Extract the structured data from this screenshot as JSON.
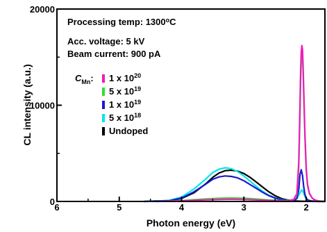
{
  "chart_data": {
    "type": "line",
    "xlabel": "Photon energy (eV)",
    "ylabel": "CL intensity (a.u.)",
    "xlim": [
      6,
      1.7
    ],
    "x_reversed": true,
    "ylim": [
      0,
      20000
    ],
    "x_ticks": [
      6,
      5,
      4,
      3,
      2
    ],
    "y_ticks": [
      0,
      10000,
      20000
    ],
    "grid": false,
    "legend_position": "top-left",
    "annotations": [
      "Processing temp: 1300°C",
      "Acc. voltage: 5 kV",
      "Beam current: 900 pA"
    ],
    "legend_title_main": "C",
    "legend_title_sub": "Mn",
    "legend_title_suffix": ":",
    "series": [
      {
        "name_main": "Undoped",
        "name_sup": "",
        "color": "#000000",
        "x": [
          4.6,
          4.2,
          4.0,
          3.8,
          3.6,
          3.5,
          3.4,
          3.3,
          3.2,
          3.1,
          3.0,
          2.9,
          2.8,
          2.7,
          2.6,
          2.5,
          2.4,
          2.3,
          2.2,
          2.1,
          2.05,
          2.0,
          1.95,
          1.9,
          1.8,
          1.7
        ],
        "y": [
          0,
          80,
          300,
          900,
          1900,
          2500,
          2950,
          3200,
          3250,
          3150,
          2900,
          2500,
          2000,
          1500,
          1000,
          600,
          300,
          150,
          60,
          30,
          20,
          15,
          10,
          5,
          0,
          0
        ]
      },
      {
        "name_main": "5 x 10",
        "name_sup": "18",
        "color": "#00e5f0",
        "x": [
          4.6,
          4.2,
          4.0,
          3.8,
          3.6,
          3.5,
          3.4,
          3.3,
          3.2,
          3.1,
          3.0,
          2.9,
          2.8,
          2.7,
          2.6,
          2.5,
          2.4,
          2.3,
          2.2,
          2.15,
          2.1,
          2.07,
          2.05,
          2.02,
          2.0,
          1.95,
          1.9,
          1.8,
          1.7
        ],
        "y": [
          0,
          100,
          450,
          1300,
          2400,
          3000,
          3350,
          3500,
          3400,
          3100,
          2650,
          2100,
          1550,
          1050,
          650,
          380,
          200,
          110,
          120,
          300,
          900,
          1200,
          1000,
          500,
          250,
          80,
          30,
          0,
          0
        ]
      },
      {
        "name_main": "1 x 10",
        "name_sup": "19",
        "color": "#1a1acc",
        "x": [
          4.6,
          4.2,
          4.0,
          3.8,
          3.6,
          3.5,
          3.4,
          3.3,
          3.2,
          3.1,
          3.0,
          2.9,
          2.8,
          2.7,
          2.6,
          2.5,
          2.4,
          2.3,
          2.2,
          2.15,
          2.12,
          2.1,
          2.08,
          2.06,
          2.04,
          2.02,
          2.0,
          1.98,
          1.95,
          1.9,
          1.8,
          1.7
        ],
        "y": [
          0,
          80,
          350,
          1000,
          1850,
          2300,
          2550,
          2650,
          2600,
          2450,
          2150,
          1750,
          1350,
          950,
          600,
          350,
          180,
          90,
          100,
          300,
          1200,
          2800,
          3300,
          2700,
          1500,
          700,
          350,
          180,
          100,
          40,
          10,
          0
        ]
      },
      {
        "name_main": "5 x 10",
        "name_sup": "19",
        "color": "#33dd33",
        "x": [
          4.4,
          4.0,
          3.8,
          3.6,
          3.4,
          3.2,
          3.0,
          2.8,
          2.6,
          2.4,
          2.3,
          2.2,
          2.15,
          2.12,
          2.1,
          2.09,
          2.08,
          2.07,
          2.06,
          2.05,
          2.04,
          2.02,
          2.0,
          1.98,
          1.95,
          1.9,
          1.85,
          1.8,
          1.7
        ],
        "y": [
          0,
          80,
          180,
          260,
          330,
          360,
          330,
          250,
          150,
          80,
          60,
          200,
          700,
          3500,
          9000,
          12500,
          14500,
          15500,
          15200,
          13500,
          11000,
          6500,
          3200,
          1700,
          800,
          300,
          120,
          50,
          0
        ]
      },
      {
        "name_main": "1 x 10",
        "name_sup": "20",
        "color": "#ee1cbb",
        "x": [
          4.4,
          4.0,
          3.8,
          3.6,
          3.4,
          3.2,
          3.0,
          2.8,
          2.6,
          2.4,
          2.3,
          2.2,
          2.15,
          2.12,
          2.1,
          2.09,
          2.08,
          2.07,
          2.06,
          2.05,
          2.04,
          2.02,
          2.0,
          1.98,
          1.95,
          1.9,
          1.85,
          1.8,
          1.7
        ],
        "y": [
          0,
          60,
          120,
          170,
          210,
          230,
          210,
          160,
          100,
          60,
          50,
          200,
          800,
          4000,
          10000,
          13500,
          15500,
          16200,
          15800,
          14000,
          11500,
          6800,
          3400,
          1800,
          850,
          320,
          130,
          50,
          0
        ]
      }
    ]
  }
}
